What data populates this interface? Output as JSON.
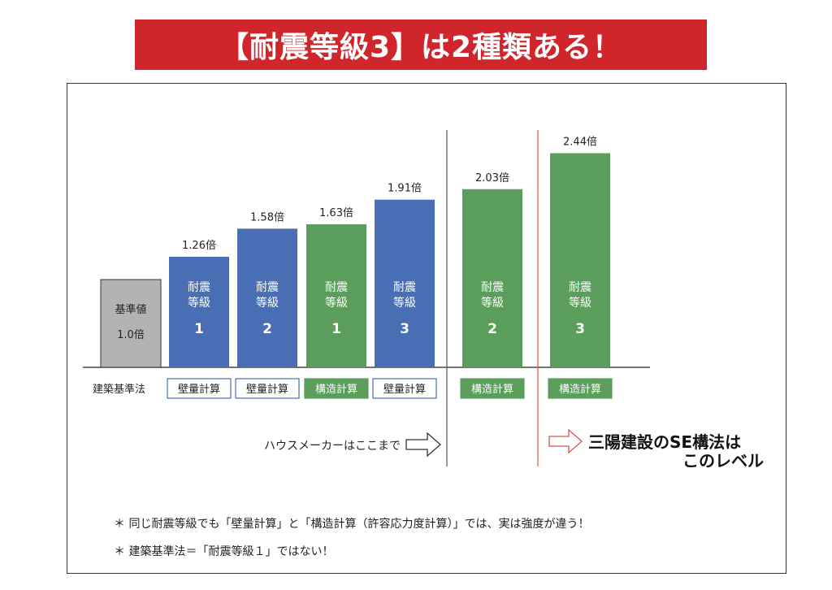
{
  "banner": {
    "title": "【耐震等級3】は2種類ある！"
  },
  "chart_data": {
    "type": "bar",
    "unit_suffix": "倍",
    "ylim": [
      0,
      2.6
    ],
    "bars": [
      {
        "value": 1.0,
        "color": "#b3b3b3",
        "inner_top": "基準値",
        "inner_bottom": "1.0倍",
        "show_value": false,
        "method": ""
      },
      {
        "value": 1.26,
        "color": "#4a6eb3",
        "inner_top": "耐震\n等級",
        "inner_bottom": "1",
        "show_value": true,
        "method": "壁量計算",
        "method_style": "outline"
      },
      {
        "value": 1.58,
        "color": "#4a6eb3",
        "inner_top": "耐震\n等級",
        "inner_bottom": "2",
        "show_value": true,
        "method": "壁量計算",
        "method_style": "outline"
      },
      {
        "value": 1.63,
        "color": "#5b9e5c",
        "inner_top": "耐震\n等級",
        "inner_bottom": "1",
        "show_value": true,
        "method": "構造計算",
        "method_style": "filled"
      },
      {
        "value": 1.91,
        "color": "#4a6eb3",
        "inner_top": "耐震\n等級",
        "inner_bottom": "3",
        "show_value": true,
        "method": "壁量計算",
        "method_style": "outline"
      },
      {
        "value": 2.03,
        "color": "#5b9e5c",
        "inner_top": "耐震\n等級",
        "inner_bottom": "2",
        "show_value": true,
        "method": "構造計算",
        "method_style": "filled"
      },
      {
        "value": 2.44,
        "color": "#5b9e5c",
        "inner_top": "耐震\n等級",
        "inner_bottom": "3",
        "show_value": true,
        "method": "構造計算",
        "method_style": "filled"
      }
    ],
    "row_label": "建築基準法",
    "annotations": {
      "housemaker": "ハウスメーカーはここまで",
      "sanyo_line1": "三陽建設のSE構法は",
      "sanyo_line2": "このレベル"
    },
    "colors": {
      "gray": "#b3b3b3",
      "blue": "#4a6eb3",
      "green": "#5b9e5c",
      "red": "#e0504a"
    }
  },
  "footnotes": [
    "＊ 同じ耐震等級でも「壁量計算」と「構造計算（許容応力度計算）」では、実は強度が違う！",
    "＊ 建築基準法＝「耐震等級１」ではない！"
  ]
}
